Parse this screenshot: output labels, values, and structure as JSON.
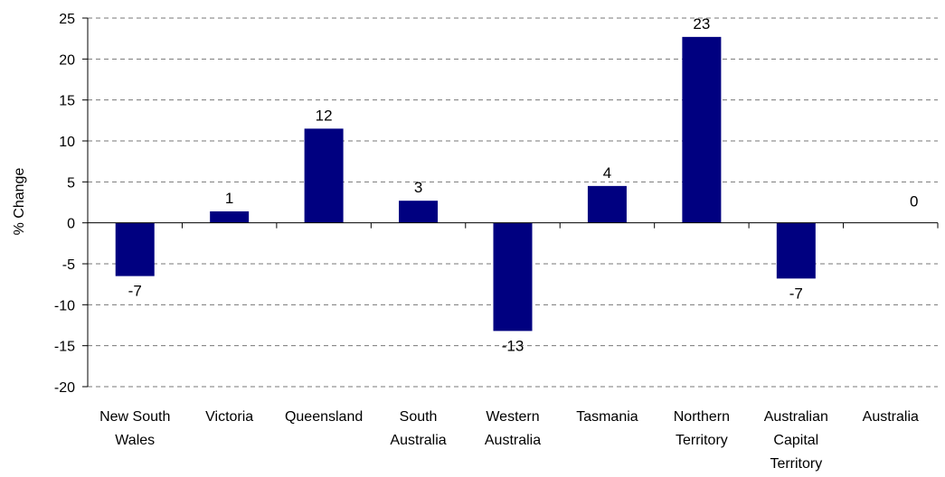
{
  "chart_data": {
    "type": "bar",
    "ylabel": "% Change",
    "xlabel": "",
    "title": "",
    "ylim": [
      -20,
      25
    ],
    "yticks": [
      25,
      20,
      15,
      10,
      5,
      0,
      -5,
      -10,
      -15,
      -20
    ],
    "grid": true,
    "legend": "none",
    "bar_color": "#000080",
    "categories": [
      [
        "New South",
        "Wales"
      ],
      [
        "Victoria"
      ],
      [
        "Queensland"
      ],
      [
        "South",
        "Australia"
      ],
      [
        "Western",
        "Australia"
      ],
      [
        "Tasmania"
      ],
      [
        "Northern",
        "Territory"
      ],
      [
        "Australian",
        "Capital",
        "Territory"
      ],
      [
        "Australia"
      ]
    ],
    "values": [
      -6.5,
      1.4,
      11.5,
      2.7,
      -13.2,
      4.5,
      22.7,
      -6.8,
      0
    ],
    "data_labels": [
      "-7",
      "1",
      "12",
      "3",
      "-13",
      "4",
      "23",
      "-7",
      "0"
    ]
  }
}
